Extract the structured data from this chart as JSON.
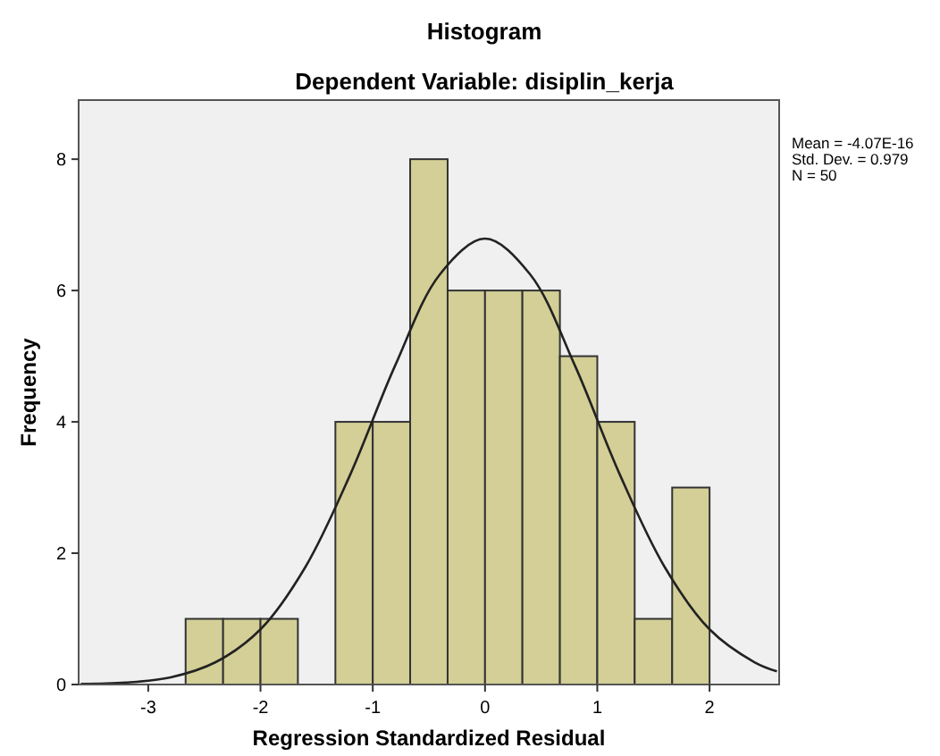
{
  "chart_data": {
    "type": "histogram",
    "title": "Histogram",
    "subtitle": "Dependent Variable: disiplin_kerja",
    "xlabel": "Regression Standardized Residual",
    "ylabel": "Frequency",
    "bins": [
      -2.667,
      -2.333,
      -2,
      -1.667,
      -1.333,
      -1,
      -0.667,
      -0.333,
      0,
      0.333,
      0.667,
      1,
      1.333,
      1.667,
      2
    ],
    "series": [
      {
        "color": "#d3cf96",
        "values": [
          1,
          1,
          1,
          0,
          4,
          4,
          8,
          6,
          6,
          6,
          5,
          4,
          1,
          3
        ]
      },
      {
        "type": "line",
        "color": "#222222",
        "x": [
          -3.6,
          -3.2,
          -2.8,
          -2.4,
          -2,
          -1.6,
          -1.2,
          -0.8,
          -0.4,
          0,
          0.4,
          0.8,
          1.2,
          1.6,
          2,
          2.4,
          2.6
        ],
        "values": [
          0.01,
          0.03,
          0.11,
          0.34,
          0.84,
          1.79,
          3.2,
          4.86,
          6.25,
          6.79,
          6.25,
          4.86,
          3.2,
          1.79,
          0.84,
          0.34,
          0.2
        ]
      }
    ],
    "xlim": [
      -3.62,
      2.62
    ],
    "xticks": [
      -3,
      -2,
      -1,
      0,
      1,
      2
    ],
    "ylim": [
      0,
      8.9
    ],
    "yticks": [
      0,
      2,
      4,
      6,
      8
    ],
    "grid": false,
    "marker": "none",
    "line_style": "solid",
    "annotations": [
      "Mean = -4.07E-16",
      "Std. Dev. = 0.979",
      "N = 50"
    ]
  }
}
